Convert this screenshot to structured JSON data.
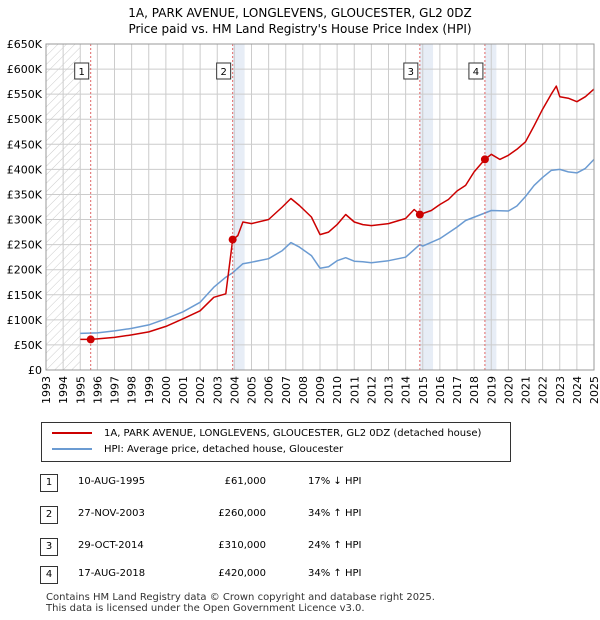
{
  "title_line1": "1A, PARK AVENUE, LONGLEVENS, GLOUCESTER, GL2 0DZ",
  "title_line2": "Price paid vs. HM Land Registry's House Price Index (HPI)",
  "colors": {
    "property": "#cc0000",
    "hpi": "#6b9bd2",
    "grid": "#cccccc",
    "shade": "#dde6f2",
    "marker_line": "#e06666"
  },
  "legend": {
    "property_label": "1A, PARK AVENUE, LONGLEVENS, GLOUCESTER, GL2 0DZ (detached house)",
    "hpi_label": "HPI: Average price, detached house, Gloucester"
  },
  "sales": [
    {
      "num": "1",
      "date": "10-AUG-1995",
      "price": "£61,000",
      "hpi": "17% ↓ HPI"
    },
    {
      "num": "2",
      "date": "27-NOV-2003",
      "price": "£260,000",
      "hpi": "34% ↑ HPI"
    },
    {
      "num": "3",
      "date": "29-OCT-2014",
      "price": "£310,000",
      "hpi": "24% ↑ HPI"
    },
    {
      "num": "4",
      "date": "17-AUG-2018",
      "price": "£420,000",
      "hpi": "34% ↑ HPI"
    }
  ],
  "footer_line1": "Contains HM Land Registry data © Crown copyright and database right 2025.",
  "footer_line2": "This data is licensed under the Open Government Licence v3.0.",
  "chart_data": {
    "type": "line",
    "xlim": [
      1993.0,
      2025.0
    ],
    "ylim": [
      0,
      650000
    ],
    "y_ticks": [
      0,
      50000,
      100000,
      150000,
      200000,
      250000,
      300000,
      350000,
      400000,
      450000,
      500000,
      550000,
      600000,
      650000
    ],
    "y_tick_labels": [
      "£0",
      "£50K",
      "£100K",
      "£150K",
      "£200K",
      "£250K",
      "£300K",
      "£350K",
      "£400K",
      "£450K",
      "£500K",
      "£550K",
      "£600K",
      "£650K"
    ],
    "x_ticks": [
      1993,
      1994,
      1995,
      1996,
      1997,
      1998,
      1999,
      2000,
      2001,
      2002,
      2003,
      2004,
      2005,
      2006,
      2007,
      2008,
      2009,
      2010,
      2011,
      2012,
      2013,
      2014,
      2015,
      2016,
      2017,
      2018,
      2019,
      2020,
      2021,
      2022,
      2023,
      2024,
      2025
    ],
    "x_tick_labels": [
      "1993",
      "1994",
      "1995",
      "1996",
      "1997",
      "1998",
      "1999",
      "2000",
      "2001",
      "2002",
      "2003",
      "2004",
      "2005",
      "2006",
      "2007",
      "2008",
      "2009",
      "2010",
      "2011",
      "2012",
      "2013",
      "2014",
      "2015",
      "2016",
      "2017",
      "2018",
      "2019",
      "2020",
      "2021",
      "2022",
      "2023",
      "2024",
      "2025"
    ],
    "hatched_ranges": [
      [
        1993.0,
        1995.0
      ],
      [
        2025.0,
        2025.0
      ]
    ],
    "shaded_periods": [
      [
        2003.9,
        2004.6
      ],
      [
        2014.83,
        2015.6
      ],
      [
        2018.63,
        2019.3
      ]
    ],
    "series": [
      {
        "name": "1A, PARK AVENUE, LONGLEVENS, GLOUCESTER, GL2 0DZ (detached house)",
        "points": [
          [
            1995.0,
            61000
          ],
          [
            1995.61,
            61000
          ],
          [
            1996,
            62000
          ],
          [
            1997,
            65000
          ],
          [
            1998,
            70000
          ],
          [
            1999,
            76000
          ],
          [
            2000,
            87000
          ],
          [
            2001,
            102000
          ],
          [
            2002,
            118000
          ],
          [
            2002.8,
            145000
          ],
          [
            2003.5,
            152000
          ],
          [
            2003.9,
            260000
          ],
          [
            2004.2,
            268000
          ],
          [
            2004.5,
            295000
          ],
          [
            2005,
            292000
          ],
          [
            2006,
            300000
          ],
          [
            2006.8,
            325000
          ],
          [
            2007.3,
            342000
          ],
          [
            2007.8,
            328000
          ],
          [
            2008.5,
            305000
          ],
          [
            2009,
            270000
          ],
          [
            2009.5,
            275000
          ],
          [
            2010,
            290000
          ],
          [
            2010.5,
            310000
          ],
          [
            2011,
            295000
          ],
          [
            2011.5,
            290000
          ],
          [
            2012,
            288000
          ],
          [
            2013,
            292000
          ],
          [
            2014,
            302000
          ],
          [
            2014.5,
            320000
          ],
          [
            2014.83,
            310000
          ],
          [
            2015,
            312000
          ],
          [
            2015.5,
            318000
          ],
          [
            2016,
            330000
          ],
          [
            2016.5,
            340000
          ],
          [
            2017,
            357000
          ],
          [
            2017.5,
            368000
          ],
          [
            2018,
            395000
          ],
          [
            2018.63,
            420000
          ],
          [
            2019,
            430000
          ],
          [
            2019.5,
            420000
          ],
          [
            2020,
            428000
          ],
          [
            2020.5,
            440000
          ],
          [
            2021,
            455000
          ],
          [
            2021.5,
            487000
          ],
          [
            2022,
            520000
          ],
          [
            2022.5,
            550000
          ],
          [
            2022.8,
            566000
          ],
          [
            2023,
            545000
          ],
          [
            2023.5,
            542000
          ],
          [
            2024,
            535000
          ],
          [
            2024.5,
            545000
          ],
          [
            2025,
            560000
          ]
        ]
      },
      {
        "name": "HPI: Average price, detached house, Gloucester",
        "points": [
          [
            1995.0,
            73000
          ],
          [
            1996,
            74000
          ],
          [
            1997,
            78000
          ],
          [
            1998,
            83000
          ],
          [
            1999,
            90000
          ],
          [
            2000,
            102000
          ],
          [
            2001,
            116000
          ],
          [
            2002,
            135000
          ],
          [
            2002.8,
            165000
          ],
          [
            2003.5,
            185000
          ],
          [
            2003.9,
            194000
          ],
          [
            2004.5,
            212000
          ],
          [
            2005,
            215000
          ],
          [
            2006,
            222000
          ],
          [
            2006.8,
            238000
          ],
          [
            2007.3,
            254000
          ],
          [
            2007.8,
            245000
          ],
          [
            2008.5,
            228000
          ],
          [
            2009,
            203000
          ],
          [
            2009.5,
            206000
          ],
          [
            2010,
            218000
          ],
          [
            2010.5,
            224000
          ],
          [
            2011,
            217000
          ],
          [
            2011.5,
            216000
          ],
          [
            2012,
            214000
          ],
          [
            2013,
            218000
          ],
          [
            2014,
            225000
          ],
          [
            2014.83,
            250000
          ],
          [
            2015,
            247000
          ],
          [
            2016,
            262000
          ],
          [
            2017,
            285000
          ],
          [
            2017.5,
            298000
          ],
          [
            2018.63,
            313000
          ],
          [
            2019,
            318000
          ],
          [
            2020,
            317000
          ],
          [
            2020.5,
            327000
          ],
          [
            2021,
            346000
          ],
          [
            2021.5,
            368000
          ],
          [
            2022,
            384000
          ],
          [
            2022.5,
            398000
          ],
          [
            2023,
            400000
          ],
          [
            2023.5,
            395000
          ],
          [
            2024,
            393000
          ],
          [
            2024.5,
            402000
          ],
          [
            2025,
            420000
          ]
        ]
      }
    ],
    "sale_markers": [
      {
        "label": "1",
        "x": 1995.61,
        "y": 61000
      },
      {
        "label": "2",
        "x": 2003.9,
        "y": 260000
      },
      {
        "label": "3",
        "x": 2014.83,
        "y": 310000
      },
      {
        "label": "4",
        "x": 2018.63,
        "y": 420000
      }
    ]
  }
}
